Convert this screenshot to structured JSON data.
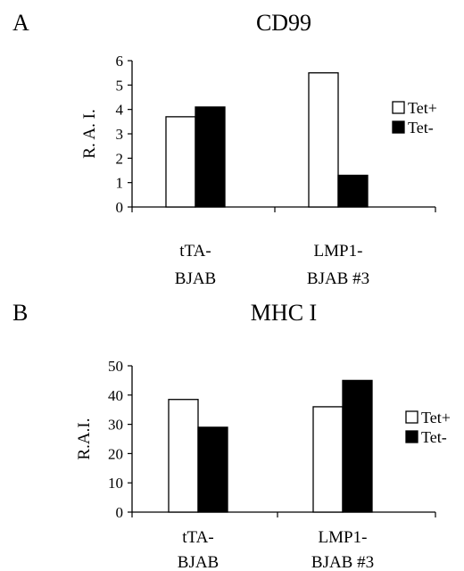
{
  "chart_data": [
    {
      "type": "bar",
      "panel_label": "A",
      "title": "CD99",
      "ylabel": "R. A. I.",
      "ylim": [
        0,
        6
      ],
      "yticks": [
        0,
        1,
        2,
        3,
        4,
        5,
        6
      ],
      "categories": [
        [
          "tTA-",
          "BJAB"
        ],
        [
          "LMP1-",
          "BJAB #3"
        ]
      ],
      "series": [
        {
          "name": "Tet+",
          "color": "#ffffff",
          "values": [
            3.7,
            5.5
          ]
        },
        {
          "name": "Tet-",
          "color": "#000000",
          "values": [
            4.1,
            1.3
          ]
        }
      ],
      "legend": "right",
      "grid": false
    },
    {
      "type": "bar",
      "panel_label": "B",
      "title": "MHC I",
      "ylabel": "R.A.I.",
      "ylim": [
        0,
        50
      ],
      "yticks": [
        0,
        10,
        20,
        30,
        40,
        50
      ],
      "categories": [
        [
          "tTA-",
          "BJAB"
        ],
        [
          "LMP1-",
          "BJAB #3"
        ]
      ],
      "series": [
        {
          "name": "Tet+",
          "color": "#ffffff",
          "values": [
            38.5,
            36
          ]
        },
        {
          "name": "Tet-",
          "color": "#000000",
          "values": [
            29,
            45
          ]
        }
      ],
      "legend": "right",
      "grid": false
    }
  ]
}
